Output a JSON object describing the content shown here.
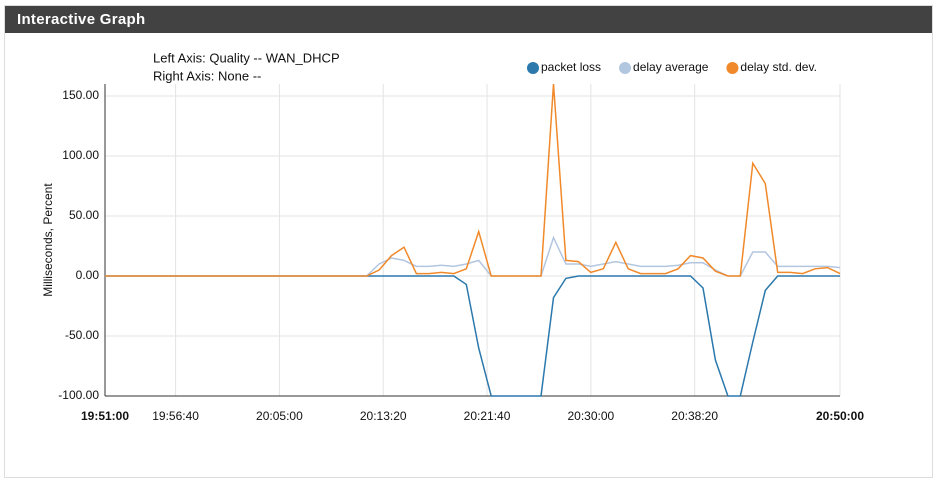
{
  "panel": {
    "title": "Interactive Graph"
  },
  "chart_data": {
    "type": "line",
    "subtitle_lines": [
      "Left Axis: Quality -- WAN_DHCP",
      "Right Axis: None --"
    ],
    "y_label": "Milliseconds, Percent",
    "x": [
      "19:51:00",
      "19:52:00",
      "19:53:00",
      "19:54:00",
      "19:55:00",
      "19:56:00",
      "19:57:00",
      "19:58:00",
      "19:59:00",
      "20:00:00",
      "20:01:00",
      "20:02:00",
      "20:03:00",
      "20:04:00",
      "20:05:00",
      "20:06:00",
      "20:07:00",
      "20:08:00",
      "20:09:00",
      "20:10:00",
      "20:11:00",
      "20:12:00",
      "20:13:00",
      "20:14:00",
      "20:15:00",
      "20:16:00",
      "20:17:00",
      "20:18:00",
      "20:19:00",
      "20:20:00",
      "20:21:00",
      "20:22:00",
      "20:23:00",
      "20:24:00",
      "20:25:00",
      "20:26:00",
      "20:27:00",
      "20:28:00",
      "20:29:00",
      "20:30:00",
      "20:31:00",
      "20:32:00",
      "20:33:00",
      "20:34:00",
      "20:35:00",
      "20:36:00",
      "20:37:00",
      "20:38:00",
      "20:39:00",
      "20:40:00",
      "20:41:00",
      "20:42:00",
      "20:43:00",
      "20:44:00",
      "20:45:00",
      "20:46:00",
      "20:47:00",
      "20:48:00",
      "20:49:00",
      "20:50:00"
    ],
    "series": [
      {
        "name": "packet loss",
        "color": "#2b78ad",
        "values": [
          0,
          0,
          0,
          0,
          0,
          0,
          0,
          0,
          0,
          0,
          0,
          0,
          0,
          0,
          0,
          0,
          0,
          0,
          0,
          0,
          0,
          0,
          0,
          0,
          0,
          0,
          0,
          0,
          0,
          -7,
          -60,
          -100,
          -100,
          -100,
          -100,
          -100,
          -18,
          -2,
          0,
          0,
          0,
          0,
          0,
          0,
          0,
          0,
          0,
          0,
          -10,
          -70,
          -100,
          -100,
          -55,
          -12,
          0,
          0,
          0,
          0,
          0,
          0
        ]
      },
      {
        "name": "delay average",
        "color": "#b3c6e0",
        "values": [
          0,
          0,
          0,
          0,
          0,
          0,
          0,
          0,
          0,
          0,
          0,
          0,
          0,
          0,
          0,
          0,
          0,
          0,
          0,
          0,
          0,
          0,
          10,
          15,
          13,
          8,
          8,
          9,
          8,
          10,
          13,
          0,
          0,
          0,
          0,
          0,
          32,
          10,
          10,
          8,
          10,
          12,
          10,
          8,
          8,
          8,
          9,
          11,
          11,
          5,
          0,
          0,
          20,
          20,
          8,
          8,
          8,
          8,
          8,
          7
        ]
      },
      {
        "name": "delay std. dev.",
        "color": "#f0892a",
        "values": [
          0,
          0,
          0,
          0,
          0,
          0,
          0,
          0,
          0,
          0,
          0,
          0,
          0,
          0,
          0,
          0,
          0,
          0,
          0,
          0,
          0,
          0,
          5,
          17,
          24,
          2,
          2,
          3,
          2,
          6,
          37,
          0,
          0,
          0,
          0,
          0,
          160,
          13,
          12,
          3,
          6,
          28,
          6,
          2,
          2,
          2,
          6,
          17,
          15,
          4,
          0,
          0,
          94,
          77,
          3,
          3,
          2,
          6,
          7,
          2
        ]
      }
    ],
    "xlim": [
      "19:51:00",
      "20:50:00"
    ],
    "xticks": [
      "19:51:00",
      "19:56:40",
      "20:05:00",
      "20:13:20",
      "20:21:40",
      "20:30:00",
      "20:38:20",
      "20:50:00"
    ],
    "ylim": [
      -100,
      160
    ],
    "yticks": [
      {
        "value": -100,
        "label": "-100.00"
      },
      {
        "value": -50,
        "label": "-50.00"
      },
      {
        "value": 0,
        "label": "0.00"
      },
      {
        "value": 50,
        "label": "50.00"
      },
      {
        "value": 100,
        "label": "100.00"
      },
      {
        "value": 150,
        "label": "150.00"
      }
    ],
    "grid": true
  }
}
